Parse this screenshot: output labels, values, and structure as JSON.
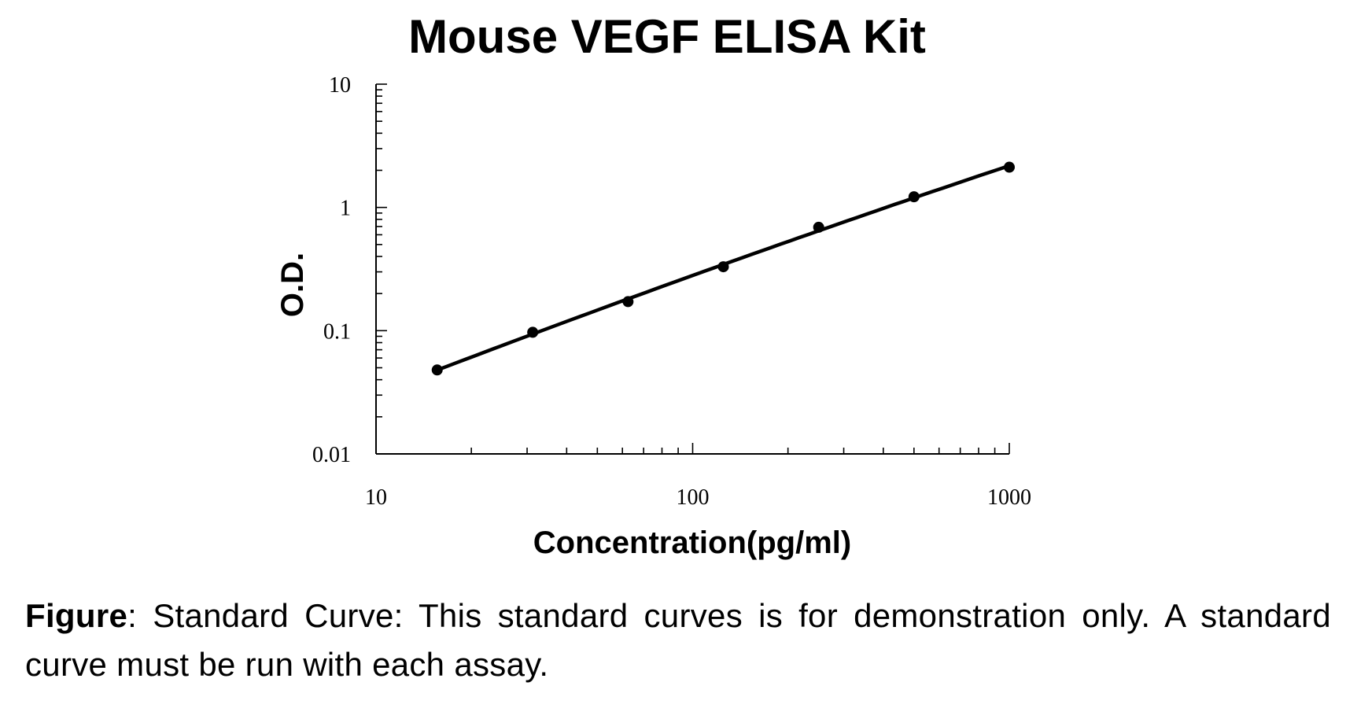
{
  "chart_data": {
    "type": "scatter",
    "title": "Mouse VEGF ELISA Kit",
    "xlabel": "Concentration(pg/ml)",
    "ylabel": "O.D.",
    "xscale": "log",
    "yscale": "log",
    "xlim": [
      10,
      1000
    ],
    "ylim": [
      0.01,
      10
    ],
    "x_ticks": [
      "10",
      "100",
      "1000"
    ],
    "y_ticks": [
      "0.01",
      "0.1",
      "1",
      "10"
    ],
    "grid": false,
    "legend": "none",
    "series": [
      {
        "x": [
          15.6,
          31.25,
          62.5,
          125,
          250,
          500,
          1000
        ],
        "y": [
          0.048,
          0.097,
          0.172,
          0.33,
          0.69,
          1.22,
          2.12
        ],
        "trendline": true
      }
    ]
  },
  "caption": {
    "label": "Figure",
    "text": ": Standard Curve: This standard curves is for demonstration only. A standard curve must be run with each assay."
  }
}
